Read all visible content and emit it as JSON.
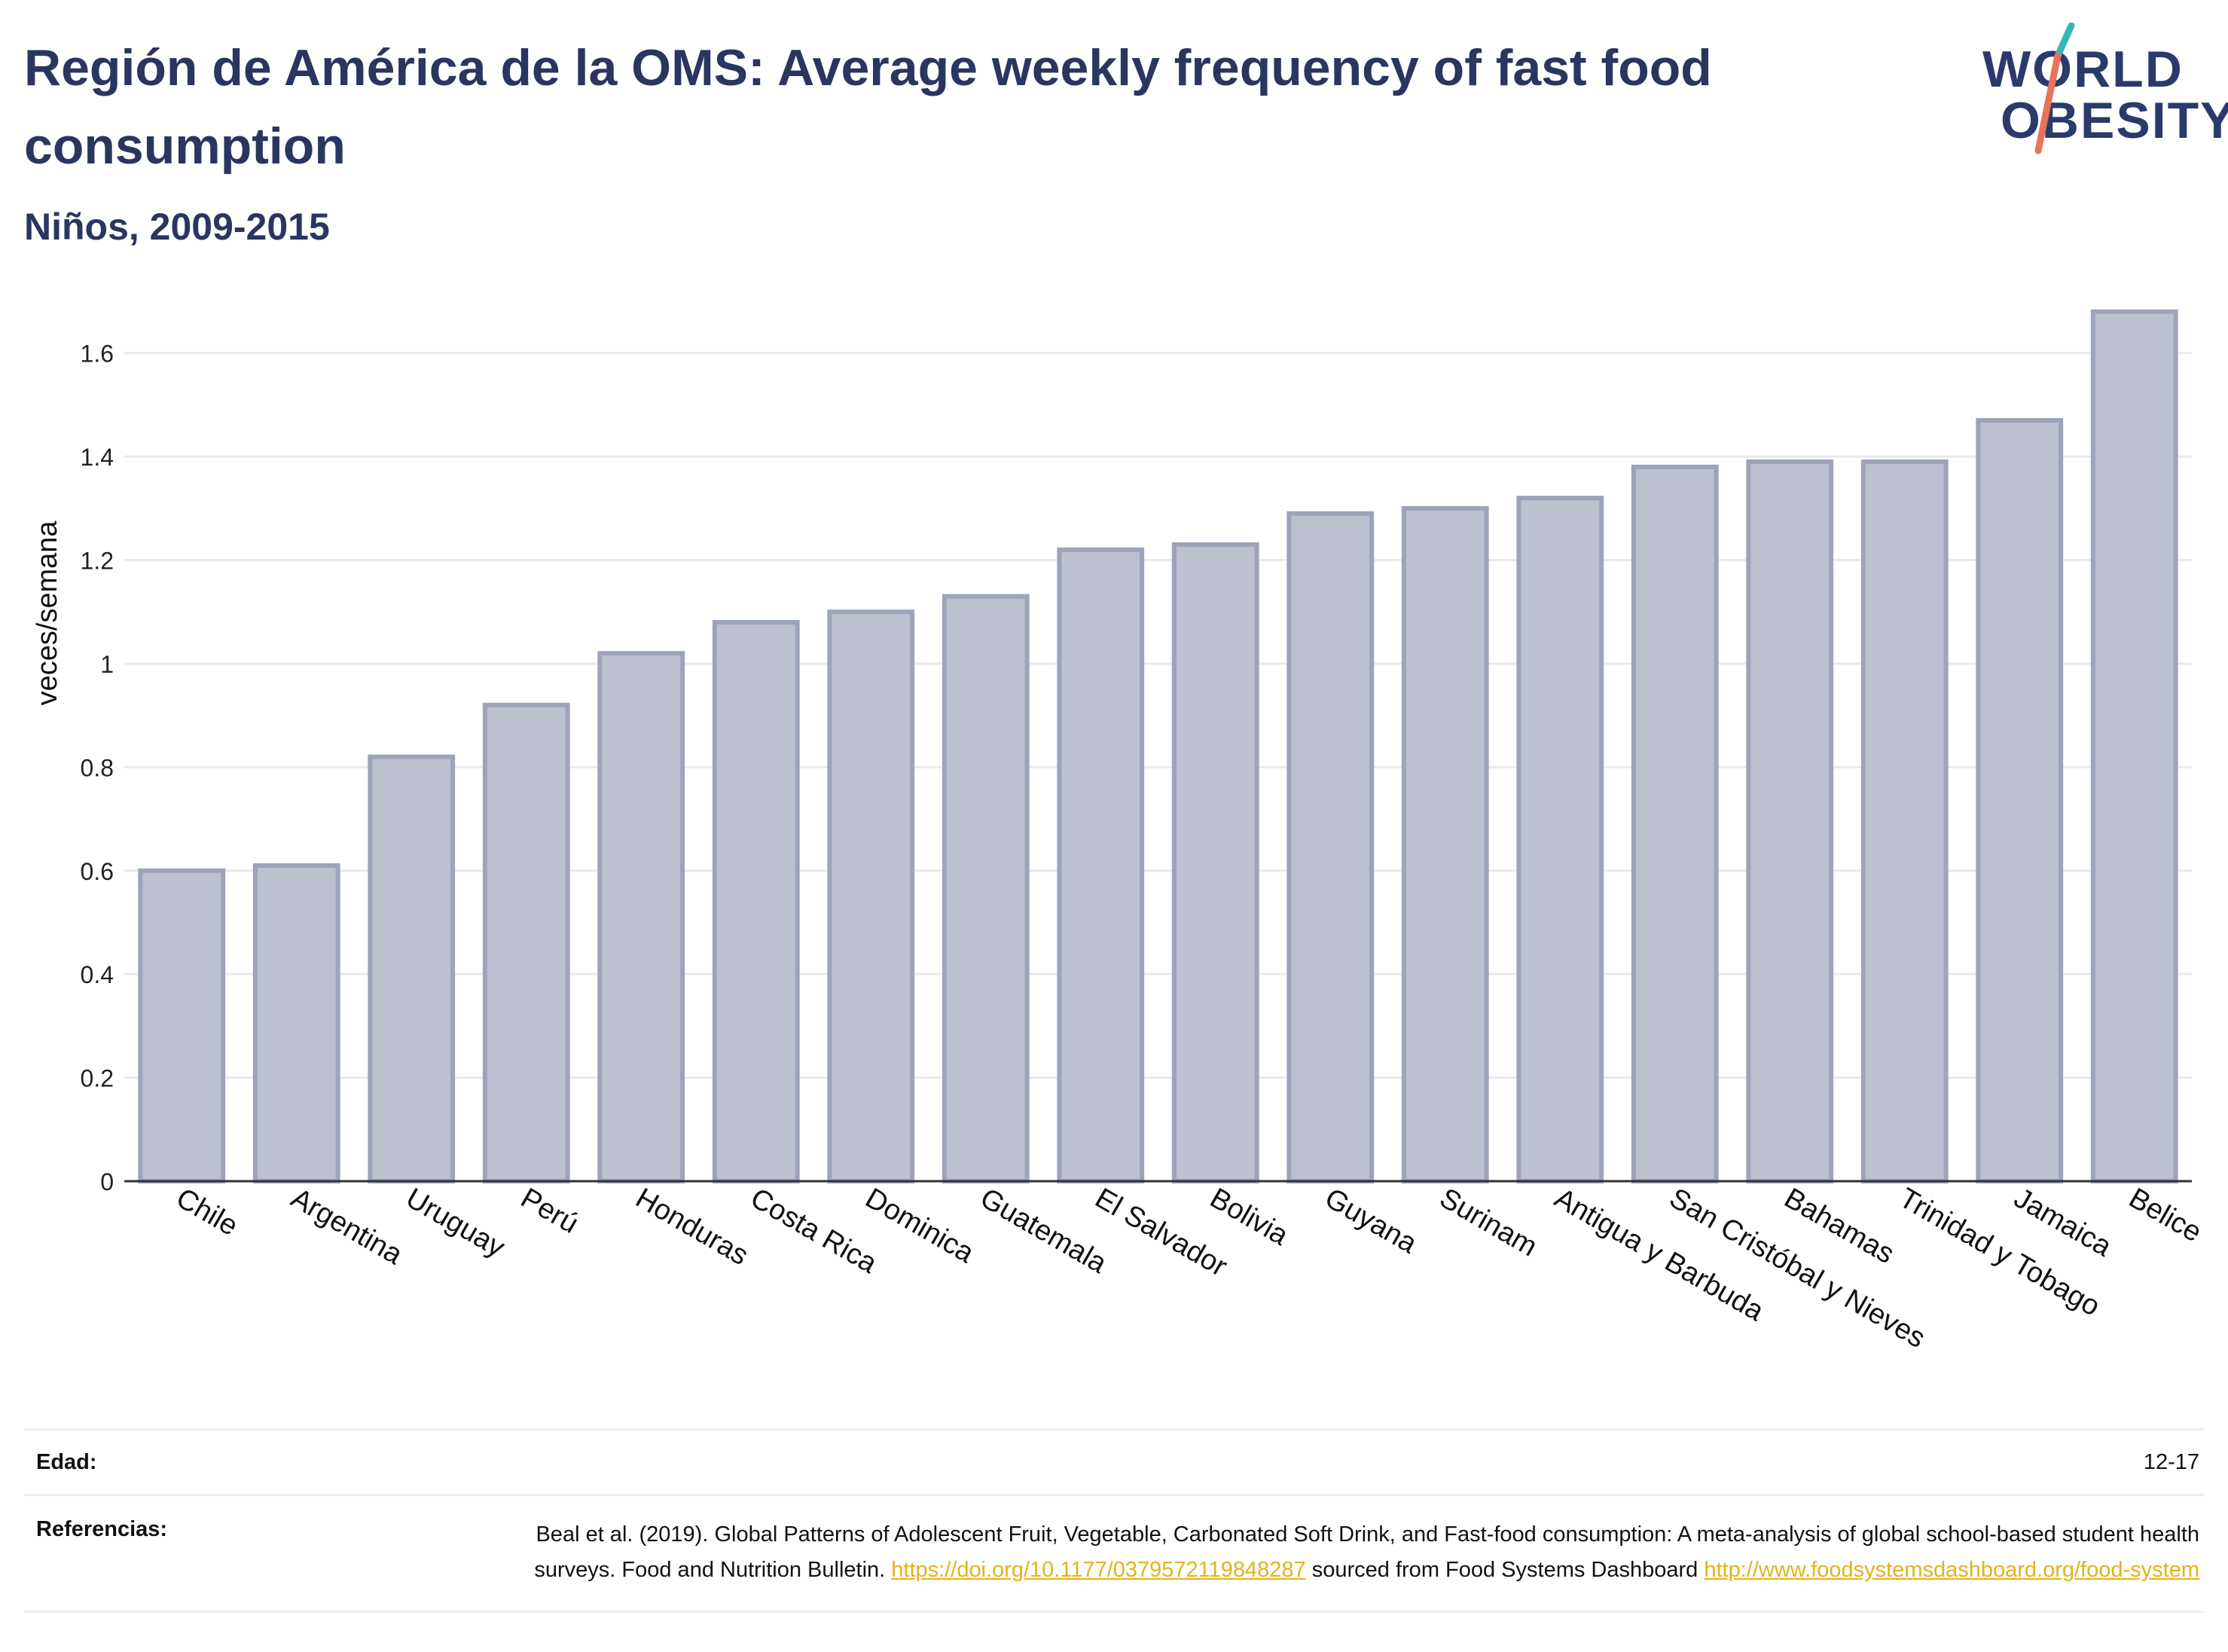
{
  "title": "Región de América de la OMS: Average weekly frequency of fast food consumption",
  "subtitle": "Niños, 2009-2015",
  "logo": {
    "line1": "WORLD",
    "line2": "OBESITY"
  },
  "colors": {
    "bar_fill": "#bcc0cf",
    "bar_stroke": "#9da3ba",
    "title": "#2a3560",
    "link": "#e3b21c",
    "logo_teal": "#35b8b3",
    "logo_coral": "#e8735a"
  },
  "chart_data": {
    "type": "bar",
    "ylabel": "veces/semana",
    "xlabel": "",
    "ylim": [
      0,
      1.7
    ],
    "yticks": [
      0,
      0.2,
      0.4,
      0.6,
      0.8,
      1,
      1.2,
      1.4,
      1.6
    ],
    "ytick_labels": [
      "0",
      "0.2",
      "0.4",
      "0.6",
      "0.8",
      "1",
      "1.2",
      "1.4",
      "1.6"
    ],
    "grid": true,
    "categories": [
      "Chile",
      "Argentina",
      "Uruguay",
      "Perú",
      "Honduras",
      "Costa Rica",
      "Dominica",
      "Guatemala",
      "El Salvador",
      "Bolivia",
      "Guyana",
      "Surinam",
      "Antigua y Barbuda",
      "San Cristóbal y Nieves",
      "Bahamas",
      "Trinidad y Tobago",
      "Jamaica",
      "Belice"
    ],
    "values": [
      0.6,
      0.61,
      0.82,
      0.92,
      1.02,
      1.08,
      1.1,
      1.13,
      1.22,
      1.23,
      1.29,
      1.3,
      1.32,
      1.38,
      1.39,
      1.39,
      1.47,
      1.68
    ]
  },
  "footer": {
    "age_label": "Edad:",
    "age_value": "12-17",
    "refs_label": "Referencias:",
    "refs_text_1": "Beal et al. (2019). Global Patterns of Adolescent Fruit, Vegetable, Carbonated Soft Drink, and Fast-food consumption: A meta-analysis of global school-based student health surveys. Food and Nutrition Bulletin. ",
    "refs_link_1": "https://doi.org/10.1177/0379572119848287",
    "refs_text_2": " sourced from Food Systems Dashboard ",
    "refs_link_2": "http://www.foodsystemsdashboard.org/food-system"
  }
}
